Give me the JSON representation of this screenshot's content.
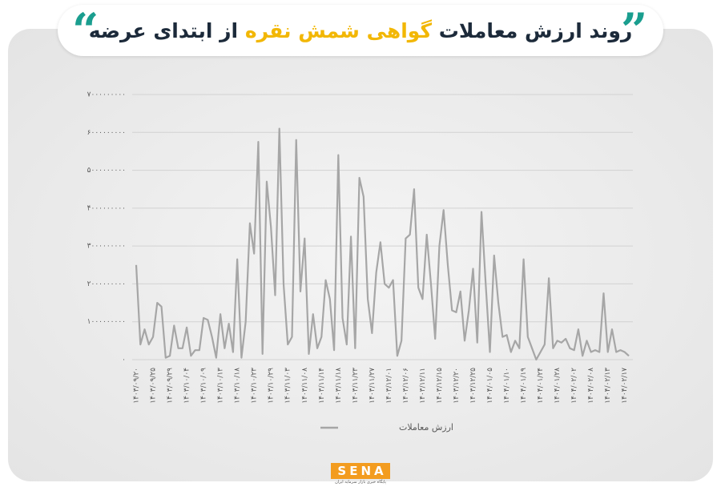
{
  "chart_data": {
    "type": "line",
    "title_parts": [
      "روند ارزش معاملات",
      "گواهی شمش نقره",
      "از ابتدای عرضه"
    ],
    "logo": "SENA",
    "logo_caption": "پایگاه خبری بازار سرمایه ایران",
    "grid": true,
    "legend": "bottom",
    "ylim": [
      0,
      7000000000
    ],
    "yticks": [
      {
        "value": 0,
        "label": "۰"
      },
      {
        "value": 1000000000,
        "label": "۱۰۰۰۰۰۰۰۰۰"
      },
      {
        "value": 2000000000,
        "label": "۲۰۰۰۰۰۰۰۰۰"
      },
      {
        "value": 3000000000,
        "label": "۳۰۰۰۰۰۰۰۰۰"
      },
      {
        "value": 4000000000,
        "label": "۴۰۰۰۰۰۰۰۰۰"
      },
      {
        "value": 5000000000,
        "label": "۵۰۰۰۰۰۰۰۰۰"
      },
      {
        "value": 6000000000,
        "label": "۶۰۰۰۰۰۰۰۰۰"
      },
      {
        "value": 7000000000,
        "label": "۷۰۰۰۰۰۰۰۰۰"
      }
    ],
    "categories": [
      "۱۴۰۳/۰۹/۲۰",
      null,
      null,
      null,
      "۱۴۰۳/۰۹/۲۵",
      null,
      null,
      null,
      "۱۴۰۳/۰۹/۲۹",
      null,
      null,
      null,
      "۱۴۰۳/۱۰/۰۴",
      null,
      null,
      null,
      "۱۴۰۳/۱۰/۰۹",
      null,
      null,
      null,
      "۱۴۰۳/۱۰/۱۳",
      null,
      null,
      null,
      "۱۴۰۳/۱۰/۱۸",
      null,
      null,
      null,
      "۱۴۰۳/۱۰/۲۳",
      null,
      null,
      null,
      "۱۴۰۳/۱۰/۲۹",
      null,
      null,
      null,
      "۱۴۰۳/۱۱/۰۳",
      null,
      null,
      null,
      "۱۴۰۳/۱۱/۰۸",
      null,
      null,
      null,
      "۱۴۰۳/۱۱/۱۴",
      null,
      null,
      null,
      "۱۴۰۳/۱۱/۱۸",
      null,
      null,
      null,
      "۱۴۰۳/۱۱/۲۳",
      null,
      null,
      null,
      "۱۴۰۳/۱۱/۲۷",
      null,
      null,
      null,
      "۱۴۰۳/۱۲/۰۱",
      null,
      null,
      null,
      "۱۴۰۳/۱۲/۰۶",
      null,
      null,
      null,
      "۱۴۰۳/۱۲/۱۱",
      null,
      null,
      null,
      "۱۴۰۳/۱۲/۱۵",
      null,
      null,
      null,
      "۱۴۰۳/۱۲/۲۰",
      null,
      null,
      null,
      "۱۴۰۳/۱۲/۲۵",
      null,
      null,
      null,
      "۱۴۰۴/۰۱/۰۵",
      null,
      null,
      null,
      "۱۴۰۴/۰۱/۱۰",
      null,
      null,
      null,
      "۱۴۰۴/۰۱/۱۹",
      null,
      null,
      null,
      "۱۴۰۴/۰۱/۲۴",
      null,
      null,
      null,
      "۱۴۰۴/۰۱/۲۸",
      null,
      null,
      null,
      "۱۴۰۴/۰۲/۰۲",
      null,
      null,
      null,
      "۱۴۰۴/۰۲/۰۸",
      null,
      null,
      null,
      "۱۴۰۴/۰۲/۱۳",
      null,
      null,
      null,
      "۱۴۰۴/۰۲/۱۷",
      null
    ],
    "series": [
      {
        "name": "ارزش معاملات",
        "color": "#a6a6a6",
        "values": [
          2500000000,
          400000000,
          800000000,
          400000000,
          600000000,
          1500000000,
          1400000000,
          50000000,
          100000000,
          900000000,
          300000000,
          300000000,
          850000000,
          100000000,
          250000000,
          250000000,
          1100000000,
          1050000000,
          600000000,
          50000000,
          1200000000,
          300000000,
          950000000,
          200000000,
          2650000000,
          50000000,
          1000000000,
          3600000000,
          2800000000,
          5750000000,
          150000000,
          4700000000,
          3500000000,
          1700000000,
          6100000000,
          2000000000,
          400000000,
          600000000,
          5800000000,
          1800000000,
          3200000000,
          150000000,
          1200000000,
          300000000,
          600000000,
          2100000000,
          1600000000,
          250000000,
          5400000000,
          1100000000,
          400000000,
          3250000000,
          300000000,
          4800000000,
          4300000000,
          1600000000,
          700000000,
          2300000000,
          3100000000,
          2000000000,
          1900000000,
          2100000000,
          100000000,
          500000000,
          3200000000,
          3300000000,
          4500000000,
          1900000000,
          1600000000,
          3300000000,
          2000000000,
          550000000,
          3000000000,
          3950000000,
          2500000000,
          1300000000,
          1250000000,
          1800000000,
          500000000,
          1300000000,
          2400000000,
          450000000,
          3900000000,
          2000000000,
          200000000,
          2750000000,
          1500000000,
          600000000,
          650000000,
          200000000,
          500000000,
          300000000,
          2650000000,
          600000000,
          300000000,
          0,
          200000000,
          400000000,
          2150000000,
          300000000,
          500000000,
          450000000,
          550000000,
          300000000,
          250000000,
          800000000,
          100000000,
          500000000,
          200000000,
          250000000,
          200000000,
          1750000000,
          200000000,
          800000000,
          200000000,
          250000000,
          200000000,
          100000000
        ]
      }
    ]
  }
}
